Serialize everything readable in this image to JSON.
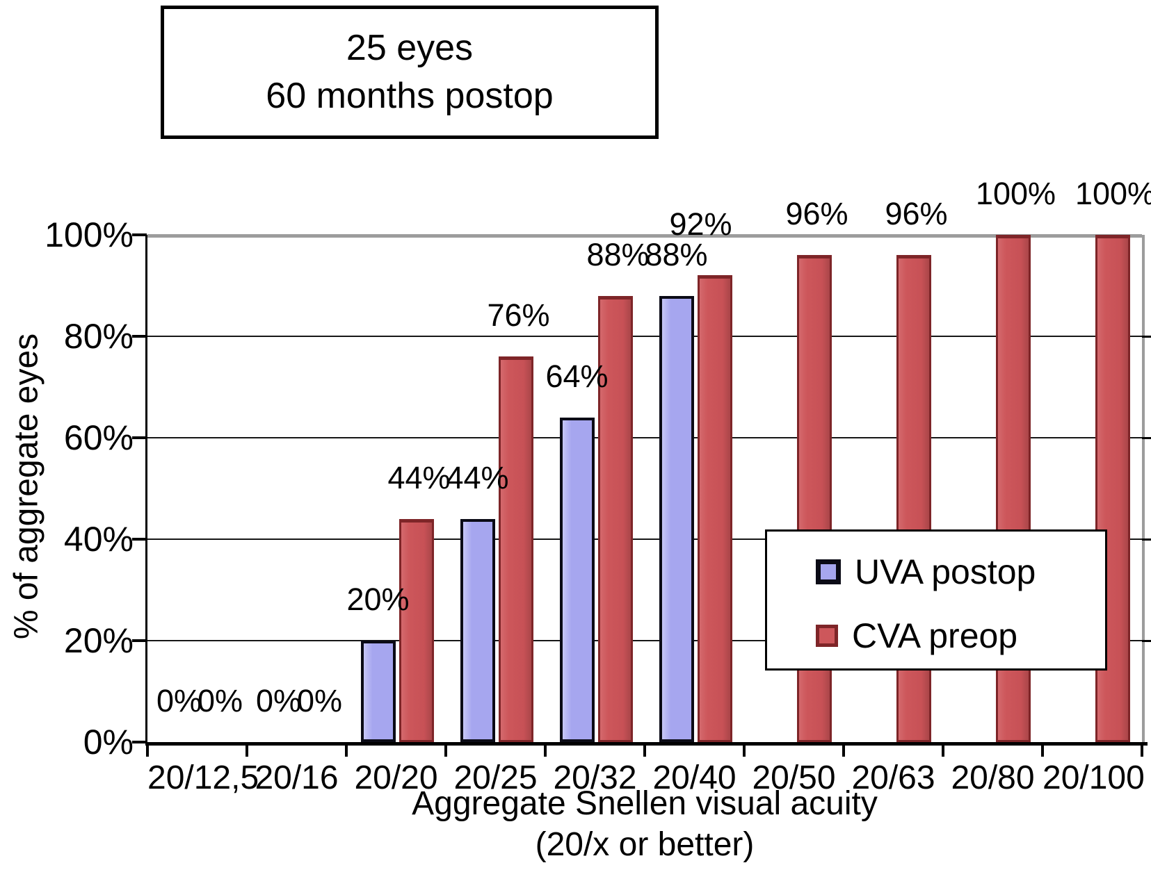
{
  "annotation_box": {
    "lines": [
      "25 eyes",
      "60 months postop"
    ]
  },
  "chart_data": {
    "type": "bar",
    "title": "25 eyes 60 months postop",
    "categories": [
      "20/12,5",
      "20/16",
      "20/20",
      "20/25",
      "20/32",
      "20/40",
      "20/50",
      "20/63",
      "20/80",
      "20/100"
    ],
    "series": [
      {
        "name": "UVA postop",
        "color": "#a6a6ef",
        "border_color": "#0b0b16",
        "values": [
          0,
          0,
          20,
          44,
          64,
          88,
          null,
          null,
          null,
          null
        ],
        "labels": [
          "0%",
          "0%",
          "20%",
          "44%",
          "64%",
          "88%",
          null,
          null,
          null,
          null
        ]
      },
      {
        "name": "CVA preop",
        "color": "#cd575b",
        "border_color": "#7e2528",
        "values": [
          0,
          0,
          44,
          76,
          88,
          92,
          96,
          96,
          100,
          100
        ],
        "labels": [
          "0%",
          "0%",
          "44%",
          "76%",
          "88%",
          "92%",
          "96%",
          "96%",
          "100%",
          "100%"
        ]
      }
    ],
    "xlabel_lines": [
      "Aggregate Snellen visual acuity",
      "(20/x or better)"
    ],
    "ylabel": "% of aggregate eyes",
    "ytick_labels": [
      "0%",
      "20%",
      "40%",
      "60%",
      "80%",
      "100%"
    ],
    "ytick_values": [
      0,
      20,
      40,
      60,
      80,
      100
    ],
    "ylim": [
      0,
      100
    ],
    "grid": "horizontal",
    "legend_position": "inside-right",
    "axis_color": "#000000",
    "gridline_color": "#161616",
    "wall_color": "#9c9c9c"
  }
}
